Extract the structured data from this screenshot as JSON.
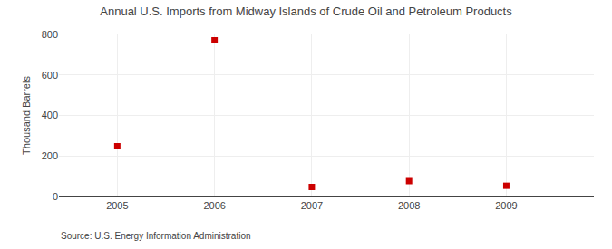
{
  "chart_data": {
    "type": "scatter",
    "title": "Annual U.S. Imports from Midway Islands of Crude Oil and Petroleum Products",
    "y_label": "Thousand Barrels",
    "annotations": [
      "Source: U.S. Energy Information Administration"
    ],
    "x": [
      2005,
      2006,
      2007,
      2008,
      2009
    ],
    "values": [
      248,
      771,
      47,
      76,
      53
    ],
    "color": "#cc0000",
    "marker": "square",
    "xlim": [
      2004.4,
      2009.9
    ],
    "ylim": [
      0,
      800
    ],
    "xticks": [
      2005,
      2006,
      2007,
      2008,
      2009
    ],
    "yticks": [
      0,
      200,
      400,
      600,
      800
    ],
    "grid": true
  }
}
